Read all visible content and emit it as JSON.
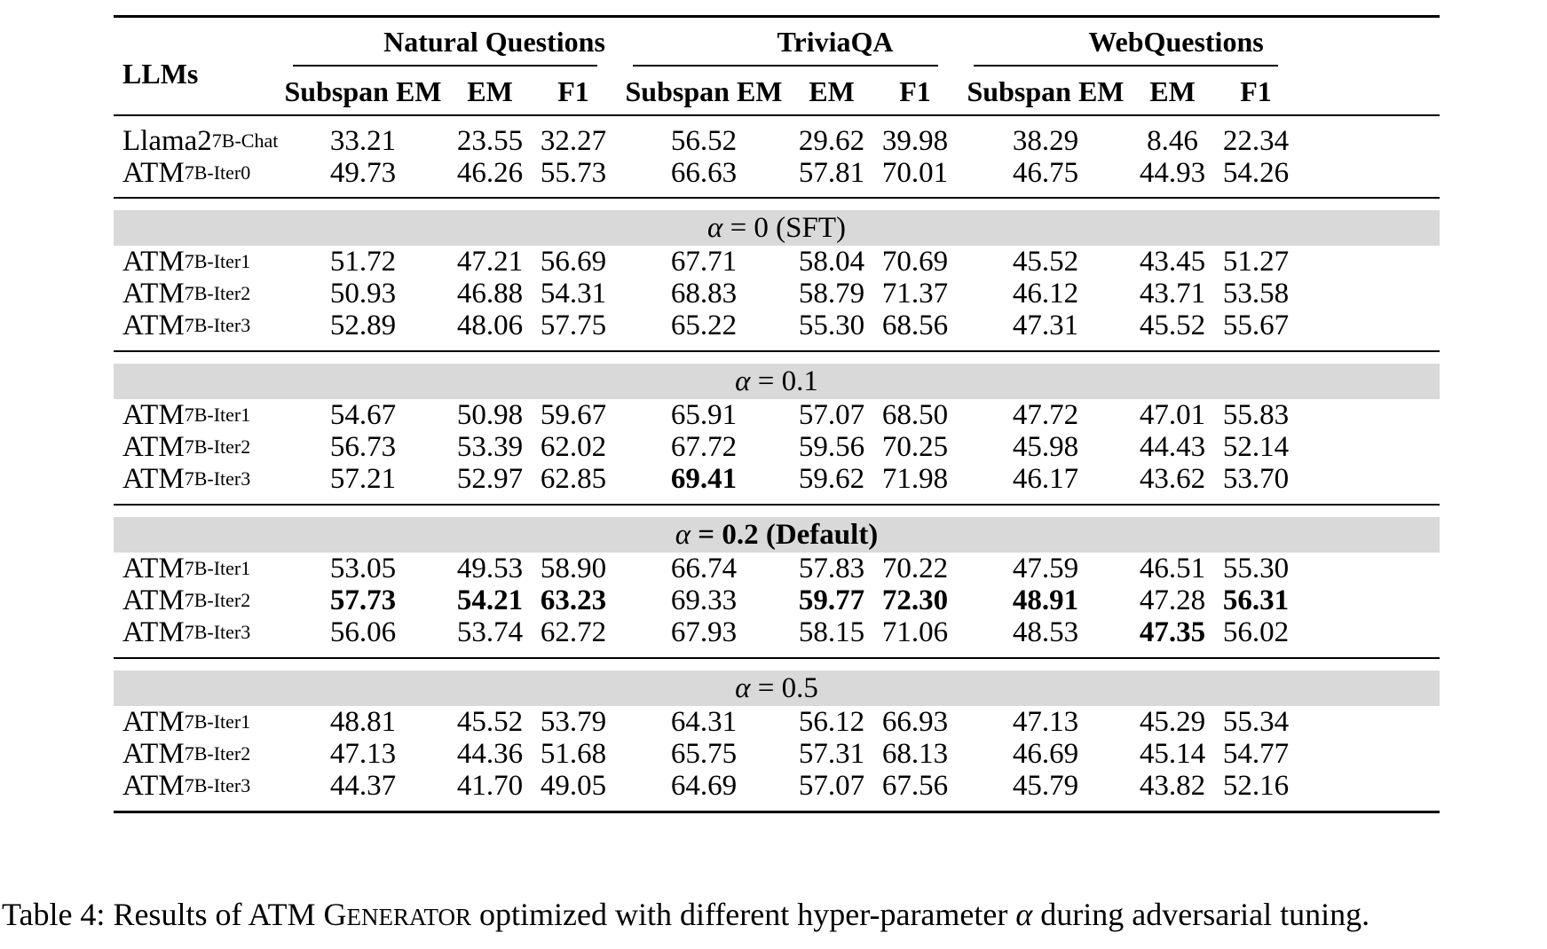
{
  "header": {
    "llms_label": "LLMs",
    "groups": [
      "Natural Questions",
      "TriviaQA",
      "WebQuestions"
    ],
    "subcols": [
      "Subspan EM",
      "EM",
      "F1"
    ]
  },
  "top_rows": [
    {
      "base": "Llama2",
      "sub": "7B-Chat",
      "values": [
        "33.21",
        "23.55",
        "32.27",
        "56.52",
        "29.62",
        "39.98",
        "38.29",
        "8.46",
        "22.34"
      ],
      "bold": [
        false,
        false,
        false,
        false,
        false,
        false,
        false,
        false,
        false
      ]
    },
    {
      "base": "ATM",
      "sub": "7B-Iter0",
      "values": [
        "49.73",
        "46.26",
        "55.73",
        "66.63",
        "57.81",
        "70.01",
        "46.75",
        "44.93",
        "54.26"
      ],
      "bold": [
        false,
        false,
        false,
        false,
        false,
        false,
        false,
        false,
        false
      ]
    }
  ],
  "sections": [
    {
      "alpha_symbol": "α",
      "eq": " = 0 (SFT)",
      "bold_label": false,
      "rows": [
        {
          "base": "ATM",
          "sub": "7B-Iter1",
          "values": [
            "51.72",
            "47.21",
            "56.69",
            "67.71",
            "58.04",
            "70.69",
            "45.52",
            "43.45",
            "51.27"
          ],
          "bold": [
            false,
            false,
            false,
            false,
            false,
            false,
            false,
            false,
            false
          ]
        },
        {
          "base": "ATM",
          "sub": "7B-Iter2",
          "values": [
            "50.93",
            "46.88",
            "54.31",
            "68.83",
            "58.79",
            "71.37",
            "46.12",
            "43.71",
            "53.58"
          ],
          "bold": [
            false,
            false,
            false,
            false,
            false,
            false,
            false,
            false,
            false
          ]
        },
        {
          "base": "ATM",
          "sub": "7B-Iter3",
          "values": [
            "52.89",
            "48.06",
            "57.75",
            "65.22",
            "55.30",
            "68.56",
            "47.31",
            "45.52",
            "55.67"
          ],
          "bold": [
            false,
            false,
            false,
            false,
            false,
            false,
            false,
            false,
            false
          ]
        }
      ]
    },
    {
      "alpha_symbol": "α",
      "eq": " = 0.1",
      "bold_label": false,
      "rows": [
        {
          "base": "ATM",
          "sub": "7B-Iter1",
          "values": [
            "54.67",
            "50.98",
            "59.67",
            "65.91",
            "57.07",
            "68.50",
            "47.72",
            "47.01",
            "55.83"
          ],
          "bold": [
            false,
            false,
            false,
            false,
            false,
            false,
            false,
            false,
            false
          ]
        },
        {
          "base": "ATM",
          "sub": "7B-Iter2",
          "values": [
            "56.73",
            "53.39",
            "62.02",
            "67.72",
            "59.56",
            "70.25",
            "45.98",
            "44.43",
            "52.14"
          ],
          "bold": [
            false,
            false,
            false,
            false,
            false,
            false,
            false,
            false,
            false
          ]
        },
        {
          "base": "ATM",
          "sub": "7B-Iter3",
          "values": [
            "57.21",
            "52.97",
            "62.85",
            "69.41",
            "59.62",
            "71.98",
            "46.17",
            "43.62",
            "53.70"
          ],
          "bold": [
            false,
            false,
            false,
            true,
            false,
            false,
            false,
            false,
            false
          ]
        }
      ]
    },
    {
      "alpha_symbol": "α",
      "eq": " = 0.2 (Default)",
      "bold_label": true,
      "rows": [
        {
          "base": "ATM",
          "sub": "7B-Iter1",
          "values": [
            "53.05",
            "49.53",
            "58.90",
            "66.74",
            "57.83",
            "70.22",
            "47.59",
            "46.51",
            "55.30"
          ],
          "bold": [
            false,
            false,
            false,
            false,
            false,
            false,
            false,
            false,
            false
          ]
        },
        {
          "base": "ATM",
          "sub": "7B-Iter2",
          "values": [
            "57.73",
            "54.21",
            "63.23",
            "69.33",
            "59.77",
            "72.30",
            "48.91",
            "47.28",
            "56.31"
          ],
          "bold": [
            true,
            true,
            true,
            false,
            true,
            true,
            true,
            false,
            true
          ]
        },
        {
          "base": "ATM",
          "sub": "7B-Iter3",
          "values": [
            "56.06",
            "53.74",
            "62.72",
            "67.93",
            "58.15",
            "71.06",
            "48.53",
            "47.35",
            "56.02"
          ],
          "bold": [
            false,
            false,
            false,
            false,
            false,
            false,
            false,
            true,
            false
          ]
        }
      ]
    },
    {
      "alpha_symbol": "α",
      "eq": " = 0.5",
      "bold_label": false,
      "rows": [
        {
          "base": "ATM",
          "sub": "7B-Iter1",
          "values": [
            "48.81",
            "45.52",
            "53.79",
            "64.31",
            "56.12",
            "66.93",
            "47.13",
            "45.29",
            "55.34"
          ],
          "bold": [
            false,
            false,
            false,
            false,
            false,
            false,
            false,
            false,
            false
          ]
        },
        {
          "base": "ATM",
          "sub": "7B-Iter2",
          "values": [
            "47.13",
            "44.36",
            "51.68",
            "65.75",
            "57.31",
            "68.13",
            "46.69",
            "45.14",
            "54.77"
          ],
          "bold": [
            false,
            false,
            false,
            false,
            false,
            false,
            false,
            false,
            false
          ]
        },
        {
          "base": "ATM",
          "sub": "7B-Iter3",
          "values": [
            "44.37",
            "41.70",
            "49.05",
            "64.69",
            "57.07",
            "67.56",
            "45.79",
            "43.82",
            "52.16"
          ],
          "bold": [
            false,
            false,
            false,
            false,
            false,
            false,
            false,
            false,
            false
          ]
        }
      ]
    }
  ],
  "caption": {
    "prefix": "Table 4: Results of ATM ",
    "gen_first": "G",
    "gen_rest": "ENERATOR",
    "middle": " optimized with different hyper-parameter ",
    "alpha": "α",
    "suffix": " during adversarial tuning."
  }
}
